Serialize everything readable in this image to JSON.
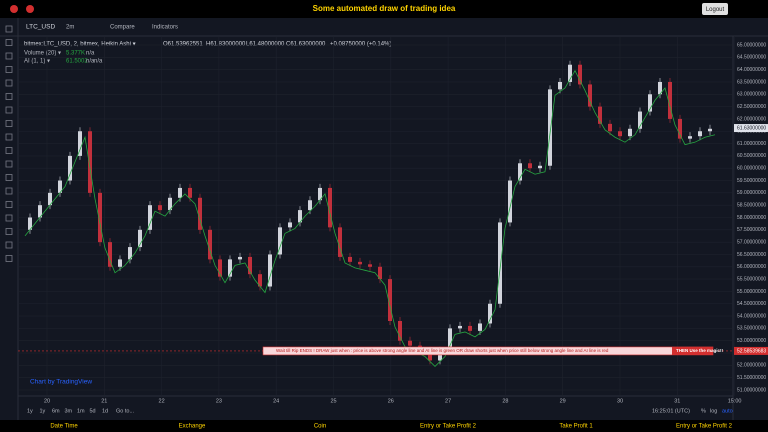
{
  "header": {
    "title": "Some automated draw of trading idea",
    "logout": "Logout"
  },
  "toolbar": {
    "symbol": "LTC_USD",
    "interval": "2m",
    "compare": "Compare",
    "indicators": "Indicators"
  },
  "legend": {
    "main": "bitmex:LTC_USD, 2, bitmex, Heikin Ashi ▾",
    "open": "O61.53962551",
    "high": "H61.83000000",
    "low": "L61.48000000",
    "close": "C61.63000000",
    "change": "+0.08750000 (+0.14%)",
    "volume": "Volume (20) ▾",
    "volume_value": "5.377K",
    "volume_na": "n/a",
    "ai": "AI (1, 1) ▾",
    "ai_value": "61.5002",
    "ai_na1": "n/a",
    "ai_na2": "n/a"
  },
  "annotation": {
    "text": "Wait till Rip ENDS !    DRAW just when : price is above strong angle line and AI line is green        OR        draw shorts just when price still below strong angle line and AI line is red",
    "magic": "THEN Use the magic!!"
  },
  "watermark": "Chart by TradingView",
  "price": {
    "up_color": "#d1d4dc",
    "down_color": "#c2303c",
    "ai_color": "#26a641",
    "closes": [
      57.5,
      58,
      58.5,
      59,
      59.5,
      60.5,
      61.5,
      59,
      57,
      56,
      56.3,
      56.8,
      57.5,
      58.5,
      58.3,
      58.8,
      59.2,
      58.8,
      57.5,
      56.3,
      55.6,
      56.3,
      56.4,
      55.7,
      55.2,
      56.5,
      57.6,
      57.8,
      58.3,
      58.7,
      59.2,
      57.6,
      56.4,
      56.2,
      56.1,
      56,
      55.5,
      53.8,
      53,
      52.8,
      52.6,
      52.2,
      52.6,
      53.5,
      53.6,
      53.4,
      53.7,
      54.5,
      57.8,
      59.5,
      60.2,
      60,
      60.1,
      63.2,
      63.5,
      64.2,
      63.4,
      62.5,
      61.8,
      61.5,
      61.3,
      61.6,
      62.3,
      63,
      63.5,
      62,
      61.2,
      61.3,
      61.5,
      61.6
    ],
    "ylim": [
      51,
      65
    ],
    "yticks": [
      {
        "value": 65,
        "label": "65.00000000"
      },
      {
        "value": 64.5,
        "label": "64.50000000"
      },
      {
        "value": 64,
        "label": "64.00000000"
      },
      {
        "value": 63.5,
        "label": "63.50000000"
      },
      {
        "value": 63,
        "label": "63.00000000"
      },
      {
        "value": 62.5,
        "label": "62.50000000"
      },
      {
        "value": 62,
        "label": "62.00000000"
      },
      {
        "value": 61.5,
        "label": "61.50000000"
      },
      {
        "value": 61,
        "label": "61.00000000"
      },
      {
        "value": 60.5,
        "label": "60.50000000"
      },
      {
        "value": 60,
        "label": "60.00000000"
      },
      {
        "value": 59.5,
        "label": "59.50000000"
      },
      {
        "value": 59,
        "label": "59.00000000"
      },
      {
        "value": 58.5,
        "label": "58.50000000"
      },
      {
        "value": 58,
        "label": "58.00000000"
      },
      {
        "value": 57.5,
        "label": "57.50000000"
      },
      {
        "value": 57,
        "label": "57.00000000"
      },
      {
        "value": 56.5,
        "label": "56.50000000"
      },
      {
        "value": 56,
        "label": "56.00000000"
      },
      {
        "value": 55.5,
        "label": "55.50000000"
      },
      {
        "value": 55,
        "label": "55.00000000"
      },
      {
        "value": 54.5,
        "label": "54.50000000"
      },
      {
        "value": 54,
        "label": "54.00000000"
      },
      {
        "value": 53.5,
        "label": "53.50000000"
      },
      {
        "value": 53,
        "label": "53.00000000"
      },
      {
        "value": 52.5,
        "label": "52.50000000"
      },
      {
        "value": 52,
        "label": "52.00000000"
      },
      {
        "value": 51.5,
        "label": "51.50000000"
      },
      {
        "value": 51,
        "label": "51.00000000"
      }
    ],
    "last": {
      "value": 61.63,
      "label": "61.63000000"
    },
    "signal": {
      "value": 52.58539683,
      "label": "52.58539683"
    }
  },
  "xaxis": [
    "20",
    "21",
    "22",
    "23",
    "24",
    "25",
    "26",
    "27",
    "28",
    "29",
    "30",
    "31",
    "15:00"
  ],
  "ranges": [
    "1y",
    "1y",
    "6m",
    "3m",
    "1m",
    "5d",
    "1d",
    "Go to..."
  ],
  "status": {
    "time": "16:25:01 (UTC)",
    "percent": "%",
    "log": "log",
    "auto": "auto"
  },
  "footer": [
    "Date Time",
    "Exchange",
    "Coin",
    "Entry or Take Profit 2",
    "Take Profit 1",
    "Entry or Take Profit 2"
  ]
}
